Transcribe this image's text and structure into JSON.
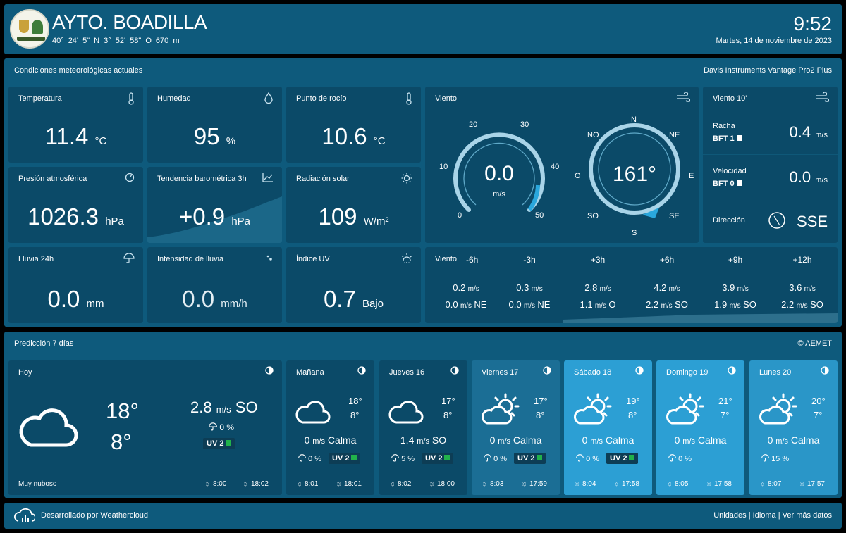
{
  "header": {
    "title": "AYTO. BOADILLA",
    "coords": "40° 24' 5\" N   3° 52' 58\" O   670 m",
    "time": "9:52",
    "date": "Martes, 14 de noviembre de 2023"
  },
  "current": {
    "title": "Condiciones meteorológicas actuales",
    "device": "Davis Instruments Vantage Pro2 Plus",
    "temperature": {
      "label": "Temperatura",
      "value": "11.4",
      "unit": "°C"
    },
    "humidity": {
      "label": "Humedad",
      "value": "95",
      "unit": "%"
    },
    "dewpoint": {
      "label": "Punto de rocío",
      "value": "10.6",
      "unit": "°C"
    },
    "pressure": {
      "label": "Presión atmosférica",
      "value": "1026.3",
      "unit": "hPa"
    },
    "trend": {
      "label": "Tendencia barométrica 3h",
      "value": "+0.9",
      "unit": "hPa"
    },
    "solar": {
      "label": "Radiación solar",
      "value": "109",
      "unit": "W/m²"
    },
    "rain24": {
      "label": "Lluvia 24h",
      "value": "0.0",
      "unit": "mm"
    },
    "rainrate": {
      "label": "Intensidad de lluvia",
      "value": "0.0",
      "unit": "mm/h"
    },
    "uv": {
      "label": "Índice UV",
      "value": "0.7",
      "unit": "Bajo"
    },
    "wind": {
      "label": "Viento",
      "speed": "0.0",
      "unit": "m/s",
      "scale": [
        "0",
        "10",
        "20",
        "30",
        "40",
        "50"
      ],
      "direction_deg": "161°",
      "compass": {
        "n": "N",
        "ne": "NE",
        "e": "E",
        "se": "SE",
        "s": "S",
        "so": "SO",
        "o": "O",
        "no": "NO"
      }
    },
    "wind10": {
      "label": "Viento 10'",
      "gust_label": "Racha",
      "gust_bft": "BFT 1",
      "gust_value": "0.4",
      "gust_unit": "m/s",
      "speed_label": "Velocidad",
      "speed_bft": "BFT 0",
      "speed_value": "0.0",
      "speed_unit": "m/s",
      "dir_label": "Dirección",
      "dir_value": "SSE"
    },
    "wind_forecast": {
      "label": "Viento",
      "cols": [
        {
          "h": "-6h",
          "a": "0.2",
          "b": "0.0",
          "bd": "NE"
        },
        {
          "h": "-3h",
          "a": "0.3",
          "b": "0.0",
          "bd": "NE"
        },
        {
          "h": "+3h",
          "a": "2.8",
          "b": "1.1",
          "bd": "O"
        },
        {
          "h": "+6h",
          "a": "4.2",
          "b": "2.2",
          "bd": "SO"
        },
        {
          "h": "+9h",
          "a": "3.9",
          "b": "1.9",
          "bd": "SO"
        },
        {
          "h": "+12h",
          "a": "3.6",
          "b": "2.2",
          "bd": "SO"
        }
      ],
      "unit": "m/s"
    }
  },
  "forecast": {
    "title": "Predicción 7 días",
    "source": "© AEMET",
    "today": {
      "name": "Hoy",
      "max": "18°",
      "min": "8°",
      "wind": "2.8",
      "wind_unit": "m/s",
      "wind_dir": "SO",
      "rain": "0 %",
      "uv": "UV 2",
      "desc": "Muy nuboso",
      "sunrise": "8:00",
      "sunset": "18:02"
    },
    "days": [
      {
        "name": "Mañana",
        "max": "18°",
        "min": "8°",
        "wind": "0",
        "unit": "m/s",
        "dir": "Calma",
        "rain": "0 %",
        "uv": "UV 2",
        "sunrise": "8:01",
        "sunset": "18:01"
      },
      {
        "name": "Jueves 16",
        "max": "17°",
        "min": "8°",
        "wind": "1.4",
        "unit": "m/s",
        "dir": "SO",
        "rain": "5 %",
        "uv": "UV 2",
        "sunrise": "8:02",
        "sunset": "18:00"
      },
      {
        "name": "Viernes 17",
        "max": "17°",
        "min": "8°",
        "wind": "0",
        "unit": "m/s",
        "dir": "Calma",
        "rain": "0 %",
        "uv": "UV 2",
        "sunrise": "8:03",
        "sunset": "17:59"
      },
      {
        "name": "Sábado 18",
        "max": "19°",
        "min": "8°",
        "wind": "0",
        "unit": "m/s",
        "dir": "Calma",
        "rain": "0 %",
        "uv": "UV 2",
        "sunrise": "8:04",
        "sunset": "17:58"
      },
      {
        "name": "Domingo 19",
        "max": "21°",
        "min": "7°",
        "wind": "0",
        "unit": "m/s",
        "dir": "Calma",
        "rain": "0 %",
        "uv": "",
        "sunrise": "8:05",
        "sunset": "17:58"
      },
      {
        "name": "Lunes 20",
        "max": "20°",
        "min": "7°",
        "wind": "0",
        "unit": "m/s",
        "dir": "Calma",
        "rain": "15 %",
        "uv": "",
        "sunrise": "8:07",
        "sunset": "17:57"
      }
    ]
  },
  "footer": {
    "credit": "Desarrollado por Weathercloud",
    "units": "Unidades",
    "language": "Idioma",
    "more": "Ver más datos",
    "sep": "|"
  },
  "icons": {
    "thermometer": "thermometer-icon",
    "drop": "humidity-icon",
    "gauge": "pressure-icon",
    "trend": "trend-icon",
    "sun": "sun-icon",
    "umbrella": "umbrella-icon",
    "rain": "rain-intensity-icon",
    "uvsun": "uv-icon",
    "wind": "wind-icon",
    "moon": "moon-phase-icon",
    "cloud": "cloud-icon",
    "partly": "partly-cloudy-icon"
  },
  "colors": {
    "background": "#0e5a7c",
    "card": "#0b4a68",
    "highlight": "#2c9fd4",
    "uv_green": "#21b24b",
    "gauge_accent": "#2aa7dc"
  }
}
